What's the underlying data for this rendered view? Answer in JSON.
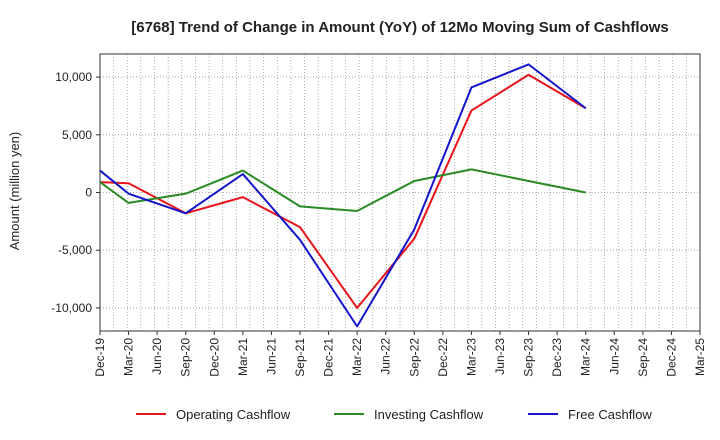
{
  "chart_data": {
    "type": "line",
    "title": "[6768]  Trend of Change in Amount (YoY) of 12Mo Moving Sum of Cashflows",
    "xlabel": "",
    "ylabel": "Amount (million yen)",
    "ylim": [
      -12000,
      12000
    ],
    "yticks": [
      -10000,
      -5000,
      0,
      5000,
      10000
    ],
    "ytick_labels": [
      "-10,000",
      "-5,000",
      "0",
      "5,000",
      "10,000"
    ],
    "grid": true,
    "legend_position": "bottom",
    "categories": [
      "Dec-19",
      "Mar-20",
      "Jun-20",
      "Sep-20",
      "Dec-20",
      "Mar-21",
      "Jun-21",
      "Sep-21",
      "Dec-21",
      "Mar-22",
      "Jun-22",
      "Sep-22",
      "Dec-22",
      "Mar-23",
      "Jun-23",
      "Sep-23",
      "Dec-23",
      "Mar-24",
      "Jun-24",
      "Sep-24",
      "Dec-24",
      "Mar-25"
    ],
    "series": [
      {
        "name": "Operating Cashflow",
        "color": "#e8141c",
        "values": [
          900,
          800,
          null,
          -1800,
          null,
          -400,
          null,
          -3000,
          null,
          -10000,
          null,
          -4000,
          null,
          7100,
          null,
          10200,
          null,
          7300,
          null,
          null,
          null,
          null
        ]
      },
      {
        "name": "Investing Cashflow",
        "color": "#2a8a26",
        "values": [
          900,
          -900,
          null,
          -100,
          null,
          1900,
          null,
          -1200,
          null,
          -1600,
          null,
          1000,
          null,
          2000,
          null,
          1000,
          null,
          0,
          null,
          null,
          null,
          null
        ]
      },
      {
        "name": "Free Cashflow",
        "color": "#1414c8",
        "values": [
          1900,
          -100,
          null,
          -1800,
          null,
          1600,
          null,
          -4100,
          null,
          -11600,
          null,
          -3200,
          null,
          9100,
          null,
          11100,
          null,
          7300,
          null,
          null,
          null,
          null
        ]
      }
    ]
  }
}
